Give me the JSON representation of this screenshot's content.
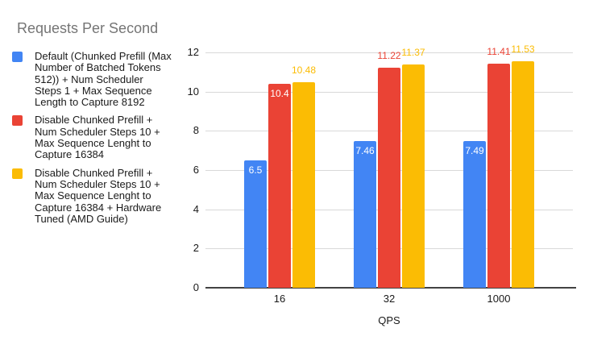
{
  "title": "Requests Per Second",
  "chart_data": {
    "type": "bar",
    "title": "Requests Per Second",
    "title_color": "#757575",
    "axis_text_color": "#1a1a1a",
    "categories": [
      "16",
      "32",
      "1000"
    ],
    "series": [
      {
        "name": "Default (Chunked Prefill (Max Number of Batched Tokens 512)) + Num Scheduler Steps 1 + Max Sequence Length to Capture 8192",
        "color": "#4285F4",
        "values": [
          6.5,
          7.46,
          7.49
        ],
        "data_labels": [
          "6.5",
          "7.46",
          "7.49"
        ],
        "label_placement": [
          "inside",
          "inside",
          "inside"
        ]
      },
      {
        "name": "Disable Chunked Prefill + Num Scheduler Steps 10 + Max Sequence Lenght to Capture 16384",
        "color": "#EA4335",
        "values": [
          10.4,
          11.22,
          11.41
        ],
        "data_labels": [
          "10.4",
          "11.22",
          "11.41"
        ],
        "label_placement": [
          "inside",
          "above",
          "above"
        ]
      },
      {
        "name": "Disable Chunked Prefill + Num Scheduler Steps 10 + Max Sequence Lenght to Capture 16384 + Hardware Tuned (AMD Guide)",
        "color": "#FBBC04",
        "values": [
          10.48,
          11.37,
          11.53
        ],
        "data_labels": [
          "10.48",
          "11.37",
          "11.53"
        ],
        "label_placement": [
          "above",
          "above",
          "above"
        ]
      }
    ],
    "xlabel": "QPS",
    "ylabel": "",
    "ylim": [
      0,
      12
    ],
    "yticks": [
      0,
      2,
      4,
      6,
      8,
      10,
      12
    ],
    "grid": true,
    "legend_position": "left",
    "data_labels_enabled": true
  }
}
